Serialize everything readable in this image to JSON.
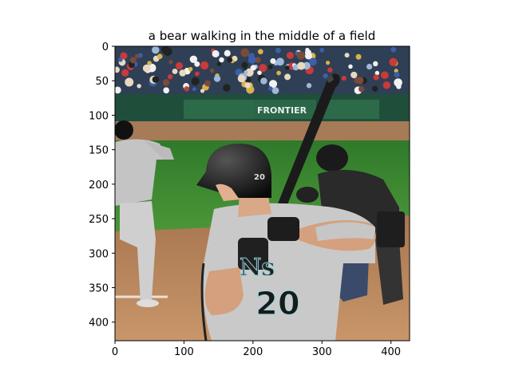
{
  "figure": {
    "title": "a bear walking in the middle of a field",
    "image_description_icon": "baseball-batter-photo"
  },
  "axes": {
    "x_range": [
      0,
      427
    ],
    "y_range": [
      0,
      427
    ],
    "x_ticks": [
      0,
      100,
      200,
      300,
      400
    ],
    "y_ticks": [
      0,
      50,
      100,
      150,
      200,
      250,
      300,
      350,
      400
    ],
    "y_inverted": true
  },
  "photo_text": {
    "jersey_word": "Ns",
    "jersey_number": "20",
    "helmet_number": "20",
    "sign_text": "FRONTIER"
  },
  "colors": {
    "axis": "#000000",
    "grass": "#3f8a2e",
    "dirt": "#b8845a",
    "uniform": "#c9c9c9",
    "stands": "#2c3e50",
    "wall": "#1f4f3a"
  }
}
